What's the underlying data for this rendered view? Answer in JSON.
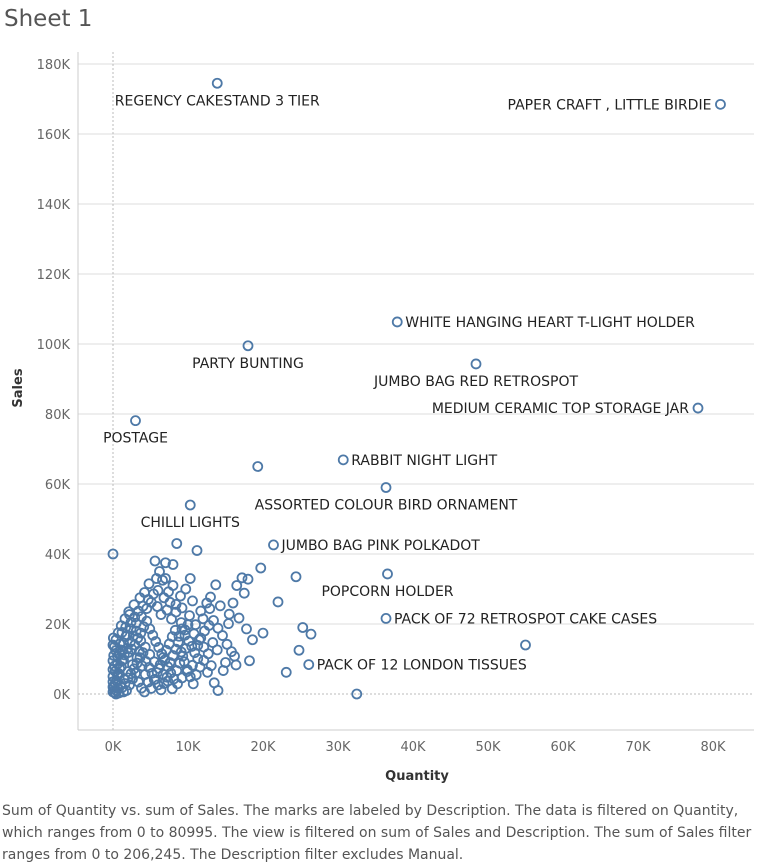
{
  "sheet_title": "Sheet 1",
  "caption": "Sum of Quantity vs. sum of Sales.  The marks are labeled by Description. The data is filtered on Quantity, which ranges from 0 to 80995. The view is filtered on sum of Sales and Description. The sum of Sales filter ranges from 0 to 206,245. The Description filter excludes Manual.",
  "colors": {
    "mark": "#4e79a7",
    "grid": "#dddddd",
    "zero_line": "#bbbbbb"
  },
  "chart_data": {
    "type": "scatter",
    "title": "",
    "xlabel": "Quantity",
    "ylabel": "Sales",
    "xlim": [
      -5000,
      85000
    ],
    "ylim": [
      -10000,
      185000
    ],
    "xticks": [
      0,
      10000,
      20000,
      30000,
      40000,
      50000,
      60000,
      70000,
      80000
    ],
    "xtick_labels": [
      "0K",
      "10K",
      "20K",
      "30K",
      "40K",
      "50K",
      "60K",
      "70K",
      "80K"
    ],
    "yticks": [
      0,
      20000,
      40000,
      60000,
      80000,
      100000,
      120000,
      140000,
      160000,
      180000
    ],
    "ytick_labels": [
      "0K",
      "20K",
      "40K",
      "60K",
      "80K",
      "100K",
      "120K",
      "140K",
      "160K",
      "180K"
    ],
    "grid": "horizontal",
    "labeled_points": [
      {
        "label": "REGENCY CAKESTAND 3 TIER",
        "x": 13900,
        "y": 174500,
        "label_pos": "below"
      },
      {
        "label": "PAPER CRAFT , LITTLE BIRDIE",
        "x": 80995,
        "y": 168470,
        "label_pos": "left"
      },
      {
        "label": "WHITE HANGING HEART T-LIGHT HOLDER",
        "x": 37900,
        "y": 106300,
        "label_pos": "right"
      },
      {
        "label": "PARTY BUNTING",
        "x": 18000,
        "y": 99500,
        "label_pos": "below"
      },
      {
        "label": "JUMBO BAG RED RETROSPOT",
        "x": 48400,
        "y": 94300,
        "label_pos": "below"
      },
      {
        "label": "MEDIUM CERAMIC TOP STORAGE JAR",
        "x": 78000,
        "y": 81700,
        "label_pos": "left"
      },
      {
        "label": "POSTAGE",
        "x": 3000,
        "y": 78100,
        "label_pos": "below"
      },
      {
        "label": "RABBIT NIGHT LIGHT",
        "x": 30700,
        "y": 66900,
        "label_pos": "right"
      },
      {
        "label": "ASSORTED COLOUR BIRD ORNAMENT",
        "x": 36400,
        "y": 59000,
        "label_pos": "below"
      },
      {
        "label": "CHILLI LIGHTS",
        "x": 10300,
        "y": 54000,
        "label_pos": "below"
      },
      {
        "label": "JUMBO BAG PINK POLKADOT",
        "x": 21400,
        "y": 42600,
        "label_pos": "right"
      },
      {
        "label": "POPCORN HOLDER",
        "x": 36600,
        "y": 34300,
        "label_pos": "below"
      },
      {
        "label": "PACK OF 72 RETROSPOT CAKE CASES",
        "x": 36400,
        "y": 21600,
        "label_pos": "right"
      },
      {
        "label": "PACK OF 12 LONDON TISSUES",
        "x": 26100,
        "y": 8400,
        "label_pos": "right"
      }
    ],
    "points": [
      [
        19300,
        65000
      ],
      [
        0,
        40000
      ],
      [
        8500,
        43000
      ],
      [
        11200,
        41000
      ],
      [
        5600,
        38000
      ],
      [
        7000,
        37500
      ],
      [
        19700,
        36000
      ],
      [
        24400,
        33500
      ],
      [
        17200,
        33200
      ],
      [
        18000,
        32800
      ],
      [
        16500,
        31000
      ],
      [
        13700,
        31200
      ],
      [
        10300,
        33000
      ],
      [
        22000,
        26300
      ],
      [
        25300,
        19000
      ],
      [
        26400,
        17100
      ],
      [
        20000,
        17400
      ],
      [
        24800,
        12500
      ],
      [
        23100,
        6200
      ],
      [
        32500,
        0
      ],
      [
        55000,
        14000
      ],
      [
        18200,
        9500
      ],
      [
        16200,
        10800
      ],
      [
        15000,
        9000
      ],
      [
        14700,
        6700
      ],
      [
        13500,
        3200
      ],
      [
        14000,
        1000
      ],
      [
        11000,
        19800
      ],
      [
        12000,
        21500
      ],
      [
        15500,
        22800
      ],
      [
        17500,
        28800
      ],
      [
        16000,
        26000
      ],
      [
        12500,
        26000
      ],
      [
        13000,
        27700
      ],
      [
        9000,
        28000
      ],
      [
        9700,
        30000
      ],
      [
        8000,
        31000
      ],
      [
        7000,
        33000
      ],
      [
        6200,
        35000
      ],
      [
        5800,
        33000
      ],
      [
        4800,
        31500
      ],
      [
        4200,
        29000
      ],
      [
        3600,
        27500
      ],
      [
        2800,
        25500
      ],
      [
        2100,
        23500
      ],
      [
        1600,
        21500
      ],
      [
        1100,
        19500
      ],
      [
        700,
        17500
      ],
      [
        400,
        15500
      ],
      [
        200,
        13500
      ],
      [
        900,
        14300
      ],
      [
        1300,
        12400
      ],
      [
        1700,
        16400
      ],
      [
        2400,
        18600
      ],
      [
        3100,
        20200
      ],
      [
        3800,
        22100
      ],
      [
        4500,
        24400
      ],
      [
        5100,
        26200
      ],
      [
        5900,
        25000
      ],
      [
        6400,
        22700
      ],
      [
        7200,
        24000
      ],
      [
        7800,
        21400
      ],
      [
        8400,
        23400
      ],
      [
        9100,
        20400
      ],
      [
        9600,
        18300
      ],
      [
        10200,
        22400
      ],
      [
        10800,
        17200
      ],
      [
        11500,
        15500
      ],
      [
        12100,
        13400
      ],
      [
        12700,
        11500
      ],
      [
        13300,
        14700
      ],
      [
        13900,
        12600
      ],
      [
        11300,
        10100
      ],
      [
        10600,
        8200
      ],
      [
        9900,
        6400
      ],
      [
        9200,
        4600
      ],
      [
        8600,
        2900
      ],
      [
        7900,
        1500
      ],
      [
        7300,
        3700
      ],
      [
        6700,
        5600
      ],
      [
        6100,
        7300
      ],
      [
        5500,
        9200
      ],
      [
        4900,
        11300
      ],
      [
        4300,
        13400
      ],
      [
        3700,
        15200
      ],
      [
        3200,
        10400
      ],
      [
        2600,
        8400
      ],
      [
        2000,
        6400
      ],
      [
        1500,
        4200
      ],
      [
        1000,
        2400
      ],
      [
        500,
        900
      ],
      [
        300,
        3100
      ],
      [
        600,
        5200
      ],
      [
        900,
        7200
      ],
      [
        1200,
        9400
      ],
      [
        1500,
        11200
      ],
      [
        1900,
        13000
      ],
      [
        2300,
        14800
      ],
      [
        2700,
        16600
      ],
      [
        3100,
        18000
      ],
      [
        3500,
        12200
      ],
      [
        3900,
        8000
      ],
      [
        4300,
        5600
      ],
      [
        4700,
        3400
      ],
      [
        5100,
        1600
      ],
      [
        5500,
        4100
      ],
      [
        5900,
        6100
      ],
      [
        6300,
        8400
      ],
      [
        6700,
        10400
      ],
      [
        7100,
        12500
      ],
      [
        7500,
        14300
      ],
      [
        7900,
        16400
      ],
      [
        8300,
        18200
      ],
      [
        8700,
        14800
      ],
      [
        9100,
        12000
      ],
      [
        9500,
        9200
      ],
      [
        9900,
        7000
      ],
      [
        10300,
        4900
      ],
      [
        10700,
        2900
      ],
      [
        11100,
        5500
      ],
      [
        11600,
        7700
      ],
      [
        12100,
        9600
      ],
      [
        12600,
        6200
      ],
      [
        13100,
        8100
      ],
      [
        1800,
        1000
      ],
      [
        2200,
        2600
      ],
      [
        2600,
        4300
      ],
      [
        3000,
        5900
      ],
      [
        3400,
        3400
      ],
      [
        3800,
        1700
      ],
      [
        4200,
        600
      ],
      [
        1400,
        600
      ],
      [
        700,
        1600
      ],
      [
        250,
        400
      ],
      [
        150,
        2100
      ],
      [
        450,
        3800
      ],
      [
        800,
        5800
      ],
      [
        1100,
        7800
      ],
      [
        1400,
        9800
      ],
      [
        2000,
        11800
      ],
      [
        2500,
        12800
      ],
      [
        2900,
        14000
      ],
      [
        3300,
        16000
      ],
      [
        3700,
        17400
      ],
      [
        4100,
        19200
      ],
      [
        4500,
        20800
      ],
      [
        4900,
        18600
      ],
      [
        5300,
        16800
      ],
      [
        5700,
        15000
      ],
      [
        6100,
        13300
      ],
      [
        6500,
        11500
      ],
      [
        6900,
        9700
      ],
      [
        7300,
        7800
      ],
      [
        7700,
        6000
      ],
      [
        8100,
        4300
      ],
      [
        8500,
        6700
      ],
      [
        8900,
        8800
      ],
      [
        9300,
        10800
      ],
      [
        9700,
        13000
      ],
      [
        10100,
        15100
      ],
      [
        10500,
        13600
      ],
      [
        10900,
        11800
      ],
      [
        11300,
        13900
      ],
      [
        11700,
        16000
      ],
      [
        12200,
        18000
      ],
      [
        12800,
        19600
      ],
      [
        13400,
        21000
      ],
      [
        14000,
        18800
      ],
      [
        14600,
        16700
      ],
      [
        15200,
        14200
      ],
      [
        15800,
        12100
      ],
      [
        16400,
        8300
      ],
      [
        600,
        10800
      ],
      [
        1000,
        12600
      ],
      [
        1400,
        14600
      ],
      [
        1900,
        16800
      ],
      [
        2400,
        20500
      ],
      [
        2900,
        22000
      ],
      [
        3400,
        23700
      ],
      [
        4000,
        25100
      ],
      [
        4700,
        27000
      ],
      [
        5400,
        28600
      ],
      [
        6000,
        29600
      ],
      [
        6800,
        27500
      ],
      [
        7600,
        26200
      ],
      [
        8400,
        25600
      ],
      [
        9200,
        24600
      ],
      [
        300,
        6500
      ],
      [
        600,
        8600
      ],
      [
        900,
        11500
      ],
      [
        200,
        8000
      ],
      [
        100,
        11000
      ],
      [
        350,
        12400
      ],
      [
        1200,
        17600
      ],
      [
        1700,
        19100
      ],
      [
        2200,
        22700
      ],
      [
        8000,
        37000
      ],
      [
        6600,
        32500
      ],
      [
        7400,
        29200
      ],
      [
        10600,
        26600
      ],
      [
        11700,
        23700
      ],
      [
        12900,
        24400
      ],
      [
        14300,
        25200
      ],
      [
        15400,
        20100
      ],
      [
        16800,
        21700
      ],
      [
        17800,
        18600
      ],
      [
        18600,
        15500
      ],
      [
        400,
        0
      ],
      [
        800,
        300
      ],
      [
        1200,
        1800
      ],
      [
        1600,
        3000
      ],
      [
        2000,
        4600
      ],
      [
        2400,
        5800
      ],
      [
        2800,
        7200
      ],
      [
        3200,
        8800
      ],
      [
        3600,
        10400
      ],
      [
        4000,
        11800
      ],
      [
        4400,
        9300
      ],
      [
        4800,
        7600
      ],
      [
        5200,
        5900
      ],
      [
        5600,
        4200
      ],
      [
        6000,
        2600
      ],
      [
        6400,
        1200
      ],
      [
        6800,
        3000
      ],
      [
        7200,
        4800
      ],
      [
        7600,
        9000
      ],
      [
        8000,
        11000
      ],
      [
        8400,
        12800
      ],
      [
        8800,
        16500
      ],
      [
        9200,
        18600
      ],
      [
        9600,
        16800
      ],
      [
        10000,
        19800
      ],
      [
        0,
        600
      ],
      [
        0,
        2000
      ],
      [
        0,
        3500
      ],
      [
        0,
        5000
      ],
      [
        0,
        7000
      ],
      [
        0,
        9500
      ],
      [
        0,
        14000
      ],
      [
        50,
        16000
      ]
    ]
  }
}
